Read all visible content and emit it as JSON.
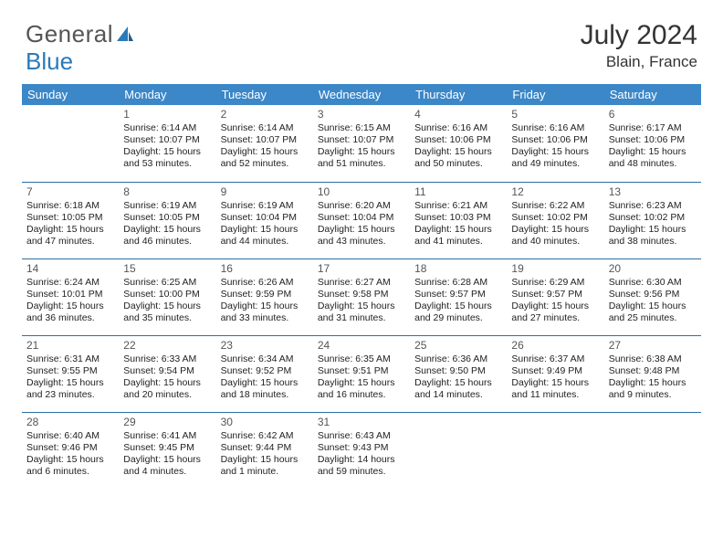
{
  "logo": {
    "text1": "General",
    "text2": "Blue"
  },
  "title": "July 2024",
  "location": "Blain, France",
  "colors": {
    "header_bg": "#3b87c8",
    "header_text": "#ffffff",
    "sep_line": "#2d6fa3",
    "logo_gray": "#555555",
    "logo_blue": "#2a7ab9"
  },
  "weekdays": [
    "Sunday",
    "Monday",
    "Tuesday",
    "Wednesday",
    "Thursday",
    "Friday",
    "Saturday"
  ],
  "weeks": [
    [
      null,
      {
        "n": "1",
        "sr": "6:14 AM",
        "ss": "10:07 PM",
        "dl": "15 hours and 53 minutes."
      },
      {
        "n": "2",
        "sr": "6:14 AM",
        "ss": "10:07 PM",
        "dl": "15 hours and 52 minutes."
      },
      {
        "n": "3",
        "sr": "6:15 AM",
        "ss": "10:07 PM",
        "dl": "15 hours and 51 minutes."
      },
      {
        "n": "4",
        "sr": "6:16 AM",
        "ss": "10:06 PM",
        "dl": "15 hours and 50 minutes."
      },
      {
        "n": "5",
        "sr": "6:16 AM",
        "ss": "10:06 PM",
        "dl": "15 hours and 49 minutes."
      },
      {
        "n": "6",
        "sr": "6:17 AM",
        "ss": "10:06 PM",
        "dl": "15 hours and 48 minutes."
      }
    ],
    [
      {
        "n": "7",
        "sr": "6:18 AM",
        "ss": "10:05 PM",
        "dl": "15 hours and 47 minutes."
      },
      {
        "n": "8",
        "sr": "6:19 AM",
        "ss": "10:05 PM",
        "dl": "15 hours and 46 minutes."
      },
      {
        "n": "9",
        "sr": "6:19 AM",
        "ss": "10:04 PM",
        "dl": "15 hours and 44 minutes."
      },
      {
        "n": "10",
        "sr": "6:20 AM",
        "ss": "10:04 PM",
        "dl": "15 hours and 43 minutes."
      },
      {
        "n": "11",
        "sr": "6:21 AM",
        "ss": "10:03 PM",
        "dl": "15 hours and 41 minutes."
      },
      {
        "n": "12",
        "sr": "6:22 AM",
        "ss": "10:02 PM",
        "dl": "15 hours and 40 minutes."
      },
      {
        "n": "13",
        "sr": "6:23 AM",
        "ss": "10:02 PM",
        "dl": "15 hours and 38 minutes."
      }
    ],
    [
      {
        "n": "14",
        "sr": "6:24 AM",
        "ss": "10:01 PM",
        "dl": "15 hours and 36 minutes."
      },
      {
        "n": "15",
        "sr": "6:25 AM",
        "ss": "10:00 PM",
        "dl": "15 hours and 35 minutes."
      },
      {
        "n": "16",
        "sr": "6:26 AM",
        "ss": "9:59 PM",
        "dl": "15 hours and 33 minutes."
      },
      {
        "n": "17",
        "sr": "6:27 AM",
        "ss": "9:58 PM",
        "dl": "15 hours and 31 minutes."
      },
      {
        "n": "18",
        "sr": "6:28 AM",
        "ss": "9:57 PM",
        "dl": "15 hours and 29 minutes."
      },
      {
        "n": "19",
        "sr": "6:29 AM",
        "ss": "9:57 PM",
        "dl": "15 hours and 27 minutes."
      },
      {
        "n": "20",
        "sr": "6:30 AM",
        "ss": "9:56 PM",
        "dl": "15 hours and 25 minutes."
      }
    ],
    [
      {
        "n": "21",
        "sr": "6:31 AM",
        "ss": "9:55 PM",
        "dl": "15 hours and 23 minutes."
      },
      {
        "n": "22",
        "sr": "6:33 AM",
        "ss": "9:54 PM",
        "dl": "15 hours and 20 minutes."
      },
      {
        "n": "23",
        "sr": "6:34 AM",
        "ss": "9:52 PM",
        "dl": "15 hours and 18 minutes."
      },
      {
        "n": "24",
        "sr": "6:35 AM",
        "ss": "9:51 PM",
        "dl": "15 hours and 16 minutes."
      },
      {
        "n": "25",
        "sr": "6:36 AM",
        "ss": "9:50 PM",
        "dl": "15 hours and 14 minutes."
      },
      {
        "n": "26",
        "sr": "6:37 AM",
        "ss": "9:49 PM",
        "dl": "15 hours and 11 minutes."
      },
      {
        "n": "27",
        "sr": "6:38 AM",
        "ss": "9:48 PM",
        "dl": "15 hours and 9 minutes."
      }
    ],
    [
      {
        "n": "28",
        "sr": "6:40 AM",
        "ss": "9:46 PM",
        "dl": "15 hours and 6 minutes."
      },
      {
        "n": "29",
        "sr": "6:41 AM",
        "ss": "9:45 PM",
        "dl": "15 hours and 4 minutes."
      },
      {
        "n": "30",
        "sr": "6:42 AM",
        "ss": "9:44 PM",
        "dl": "15 hours and 1 minute."
      },
      {
        "n": "31",
        "sr": "6:43 AM",
        "ss": "9:43 PM",
        "dl": "14 hours and 59 minutes."
      },
      null,
      null,
      null
    ]
  ],
  "labels": {
    "sunrise": "Sunrise: ",
    "sunset": "Sunset: ",
    "daylight": "Daylight: "
  }
}
